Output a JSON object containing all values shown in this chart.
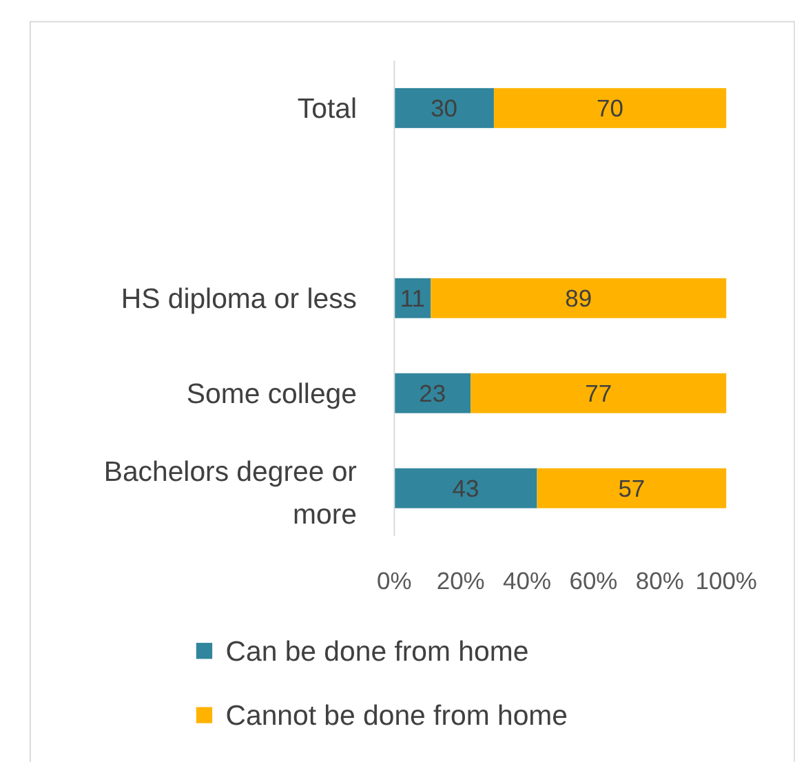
{
  "chart_data": {
    "type": "bar",
    "orientation": "horizontal",
    "stacked": true,
    "categories": [
      "Total",
      null,
      "HS diploma or less",
      "Some college",
      "Bachelors degree or more"
    ],
    "series": [
      {
        "name": "Can be done from home",
        "color": "#31859c",
        "values": [
          30,
          null,
          11,
          23,
          43
        ]
      },
      {
        "name": "Cannot be done from home",
        "color": "#ffb300",
        "values": [
          70,
          null,
          89,
          77,
          57
        ]
      }
    ],
    "xlim": [
      0,
      100
    ],
    "xticks": [
      {
        "value": 0,
        "label": "0%"
      },
      {
        "value": 20,
        "label": "20%"
      },
      {
        "value": 40,
        "label": "40%"
      },
      {
        "value": 60,
        "label": "60%"
      },
      {
        "value": 80,
        "label": "80%"
      },
      {
        "value": 100,
        "label": "100%"
      }
    ],
    "data_labels": true,
    "grid": false,
    "legend": "bottom"
  }
}
